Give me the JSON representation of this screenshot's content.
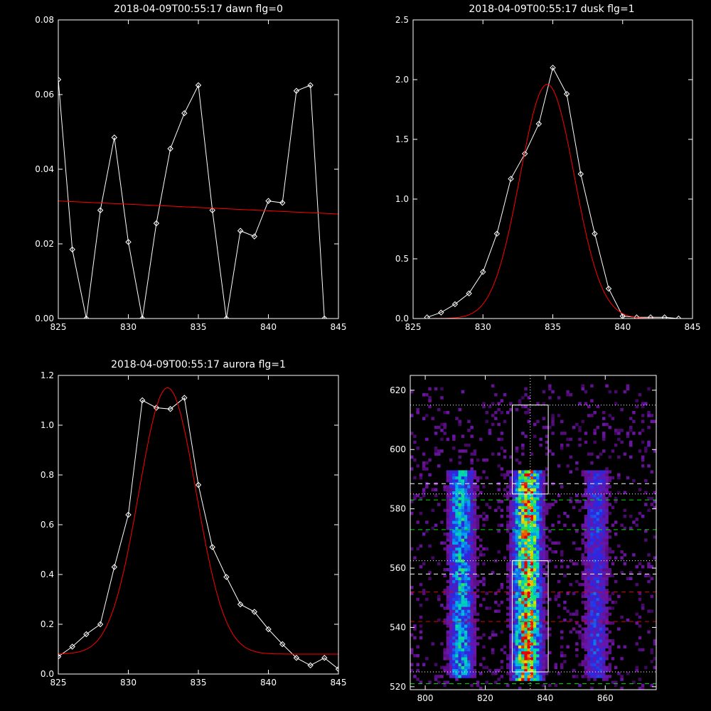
{
  "chart_data": [
    {
      "type": "line",
      "title": "2018-04-09T00:55:17 dawn flg=0",
      "xlim": [
        825,
        845
      ],
      "ylim": [
        0,
        0.08
      ],
      "xticks": [
        "825",
        "830",
        "835",
        "840",
        "845"
      ],
      "yticks": [
        "0.00",
        "0.02",
        "0.04",
        "0.06",
        "0.08"
      ],
      "series": [
        {
          "x": [
            825,
            826,
            827,
            828,
            829,
            830,
            831,
            832,
            833,
            834,
            835,
            836,
            837,
            838,
            839,
            840,
            841,
            842,
            843,
            844
          ],
          "y": [
            0.064,
            0.0185,
            0,
            0.029,
            0.0485,
            0.0205,
            0,
            0.0255,
            0.0455,
            0.055,
            0.0625,
            0.029,
            0,
            0.0235,
            0.022,
            0.0315,
            0.031,
            0.061,
            0.0625,
            0
          ],
          "color": "#ffffff",
          "markers": true
        },
        {
          "x": [
            825,
            845
          ],
          "y": [
            0.0315,
            0.028
          ],
          "color": "#ff0000",
          "markers": false
        }
      ]
    },
    {
      "type": "line",
      "title": "2018-04-09T00:55:17 dusk flg=1",
      "xlim": [
        825,
        845
      ],
      "ylim": [
        0,
        2.5
      ],
      "xticks": [
        "825",
        "830",
        "835",
        "840",
        "845"
      ],
      "yticks": [
        "0.0",
        "0.5",
        "1.0",
        "1.5",
        "2.0",
        "2.5"
      ],
      "series": [
        {
          "x": [
            826,
            827,
            828,
            829,
            830,
            831,
            832,
            833,
            834,
            835,
            836,
            837,
            838,
            839,
            840,
            841,
            842,
            843,
            844
          ],
          "y": [
            0.01,
            0.05,
            0.12,
            0.21,
            0.39,
            0.71,
            1.17,
            1.38,
            1.63,
            2.1,
            1.88,
            1.21,
            0.71,
            0.25,
            0.02,
            0.01,
            0.01,
            0.01,
            0.0
          ],
          "color": "#ffffff",
          "markers": true
        },
        {
          "gauss": {
            "amp": 1.96,
            "mu": 834.6,
            "sigma": 1.95,
            "base": 0.0
          },
          "x_range": [
            825,
            845
          ],
          "color": "#ff0000",
          "markers": false
        }
      ]
    },
    {
      "type": "line",
      "title": "2018-04-09T00:55:17 aurora flg=1",
      "xlim": [
        825,
        845
      ],
      "ylim": [
        0,
        1.2
      ],
      "xticks": [
        "825",
        "830",
        "835",
        "840",
        "845"
      ],
      "yticks": [
        "0.0",
        "0.2",
        "0.4",
        "0.6",
        "0.8",
        "1.0",
        "1.2"
      ],
      "series": [
        {
          "x": [
            825,
            826,
            827,
            828,
            829,
            830,
            831,
            832,
            833,
            834,
            835,
            836,
            837,
            838,
            839,
            840,
            841,
            842,
            843,
            844,
            845
          ],
          "y": [
            0.07,
            0.11,
            0.16,
            0.2,
            0.43,
            0.64,
            1.1,
            1.07,
            1.065,
            1.11,
            0.76,
            0.51,
            0.39,
            0.28,
            0.25,
            0.18,
            0.12,
            0.065,
            0.035,
            0.065,
            0.02
          ],
          "color": "#ffffff",
          "markers": true
        },
        {
          "gauss": {
            "amp": 1.07,
            "mu": 832.8,
            "sigma": 2.05,
            "base": 0.08
          },
          "x_range": [
            825,
            845
          ],
          "color": "#ff0000",
          "markers": false
        }
      ]
    },
    {
      "type": "heatmap",
      "xlim": [
        795,
        877
      ],
      "ylim": [
        519,
        625
      ],
      "xticks": [
        "800",
        "820",
        "840",
        "860"
      ],
      "yticks": [
        "520",
        "540",
        "560",
        "580",
        "600",
        "620"
      ],
      "bands": [
        {
          "center": 812,
          "width": 3.0,
          "y_from": 525,
          "y_to": 592,
          "intensity": 0.55
        },
        {
          "center": 834,
          "width": 3.2,
          "y_from": 524,
          "y_to": 592,
          "intensity": 0.9
        },
        {
          "center": 857,
          "width": 3.0,
          "y_from": 525,
          "y_to": 592,
          "intensity": 0.35
        }
      ],
      "boxes": [
        {
          "x": [
            829,
            841
          ],
          "y": [
            525,
            562.5
          ]
        },
        {
          "x": [
            829,
            841
          ],
          "y": [
            585,
            615
          ]
        }
      ],
      "vline_dotted": 835,
      "hlines": [
        {
          "y": 615,
          "color": "#ffffff",
          "style": "dotted"
        },
        {
          "y": 588.5,
          "color": "#ffffff",
          "style": "dashed"
        },
        {
          "y": 585,
          "color": "#ffffff",
          "style": "dotted"
        },
        {
          "y": 583,
          "color": "#00dd00",
          "style": "dashed"
        },
        {
          "y": 573,
          "color": "#00dd00",
          "style": "dashed"
        },
        {
          "y": 562.5,
          "color": "#ffffff",
          "style": "dotted"
        },
        {
          "y": 558,
          "color": "#ffffff",
          "style": "dashed"
        },
        {
          "y": 552,
          "color": "#dd0000",
          "style": "dashed"
        },
        {
          "y": 542,
          "color": "#dd0000",
          "style": "dashed"
        },
        {
          "y": 525,
          "color": "#ffffff",
          "style": "dotted"
        },
        {
          "y": 521,
          "color": "#00dd00",
          "style": "dashed"
        }
      ]
    }
  ]
}
